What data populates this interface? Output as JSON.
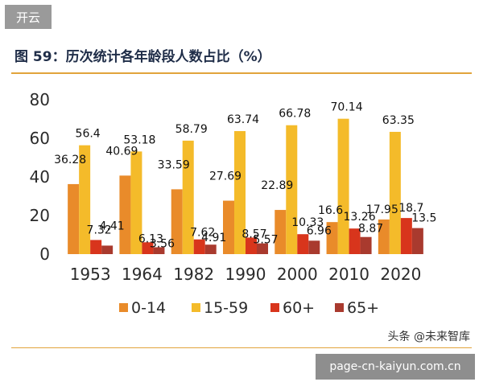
{
  "header": {
    "badge": "开云"
  },
  "footer": {
    "watermark": "头条 @未来智库",
    "url": "page-cn-kaiyun.com.cn"
  },
  "colors": {
    "s0_14": "#e98b2a",
    "s15_59": "#f4bb2a",
    "s60": "#d8351c",
    "s65": "#a93a2e",
    "rule": "#e1a43c"
  },
  "chart_data": {
    "type": "bar",
    "title": "图 59：历次统计各年龄段人数占比（%）",
    "xlabel": "",
    "ylabel": "",
    "ylim": [
      0,
      80
    ],
    "yticks": [
      0,
      20,
      40,
      60,
      80
    ],
    "grid": false,
    "legend_position": "bottom",
    "categories": [
      "1953",
      "1964",
      "1982",
      "1990",
      "2000",
      "2010",
      "2020"
    ],
    "series": [
      {
        "name": "0-14",
        "color": "#e98b2a",
        "values": [
          36.28,
          40.69,
          33.59,
          27.69,
          22.89,
          16.6,
          17.95
        ],
        "labels": [
          "36.28",
          "40.69",
          "33.59",
          "27.69",
          "22.89",
          "16.6",
          "17.95"
        ]
      },
      {
        "name": "15-59",
        "color": "#f4bb2a",
        "values": [
          56.4,
          53.18,
          58.79,
          63.74,
          66.78,
          70.14,
          63.35
        ],
        "labels": [
          "56.4",
          "53.18",
          "58.79",
          "63.74",
          "66.78",
          "70.14",
          "63.35"
        ]
      },
      {
        "name": "60+",
        "color": "#d8351c",
        "values": [
          7.32,
          6.13,
          7.62,
          8.57,
          10.33,
          13.26,
          18.7
        ],
        "labels": [
          "7.32",
          "6.13",
          "7.62",
          "8.57",
          "10.33",
          "13.26",
          "18.7"
        ]
      },
      {
        "name": "65+",
        "color": "#a93a2e",
        "values": [
          4.41,
          3.56,
          4.91,
          5.57,
          6.96,
          8.87,
          13.5
        ],
        "labels": [
          "4.41",
          "3.56",
          "4.91",
          "5.57",
          "6.96",
          "8.87",
          "13.5"
        ]
      }
    ]
  }
}
